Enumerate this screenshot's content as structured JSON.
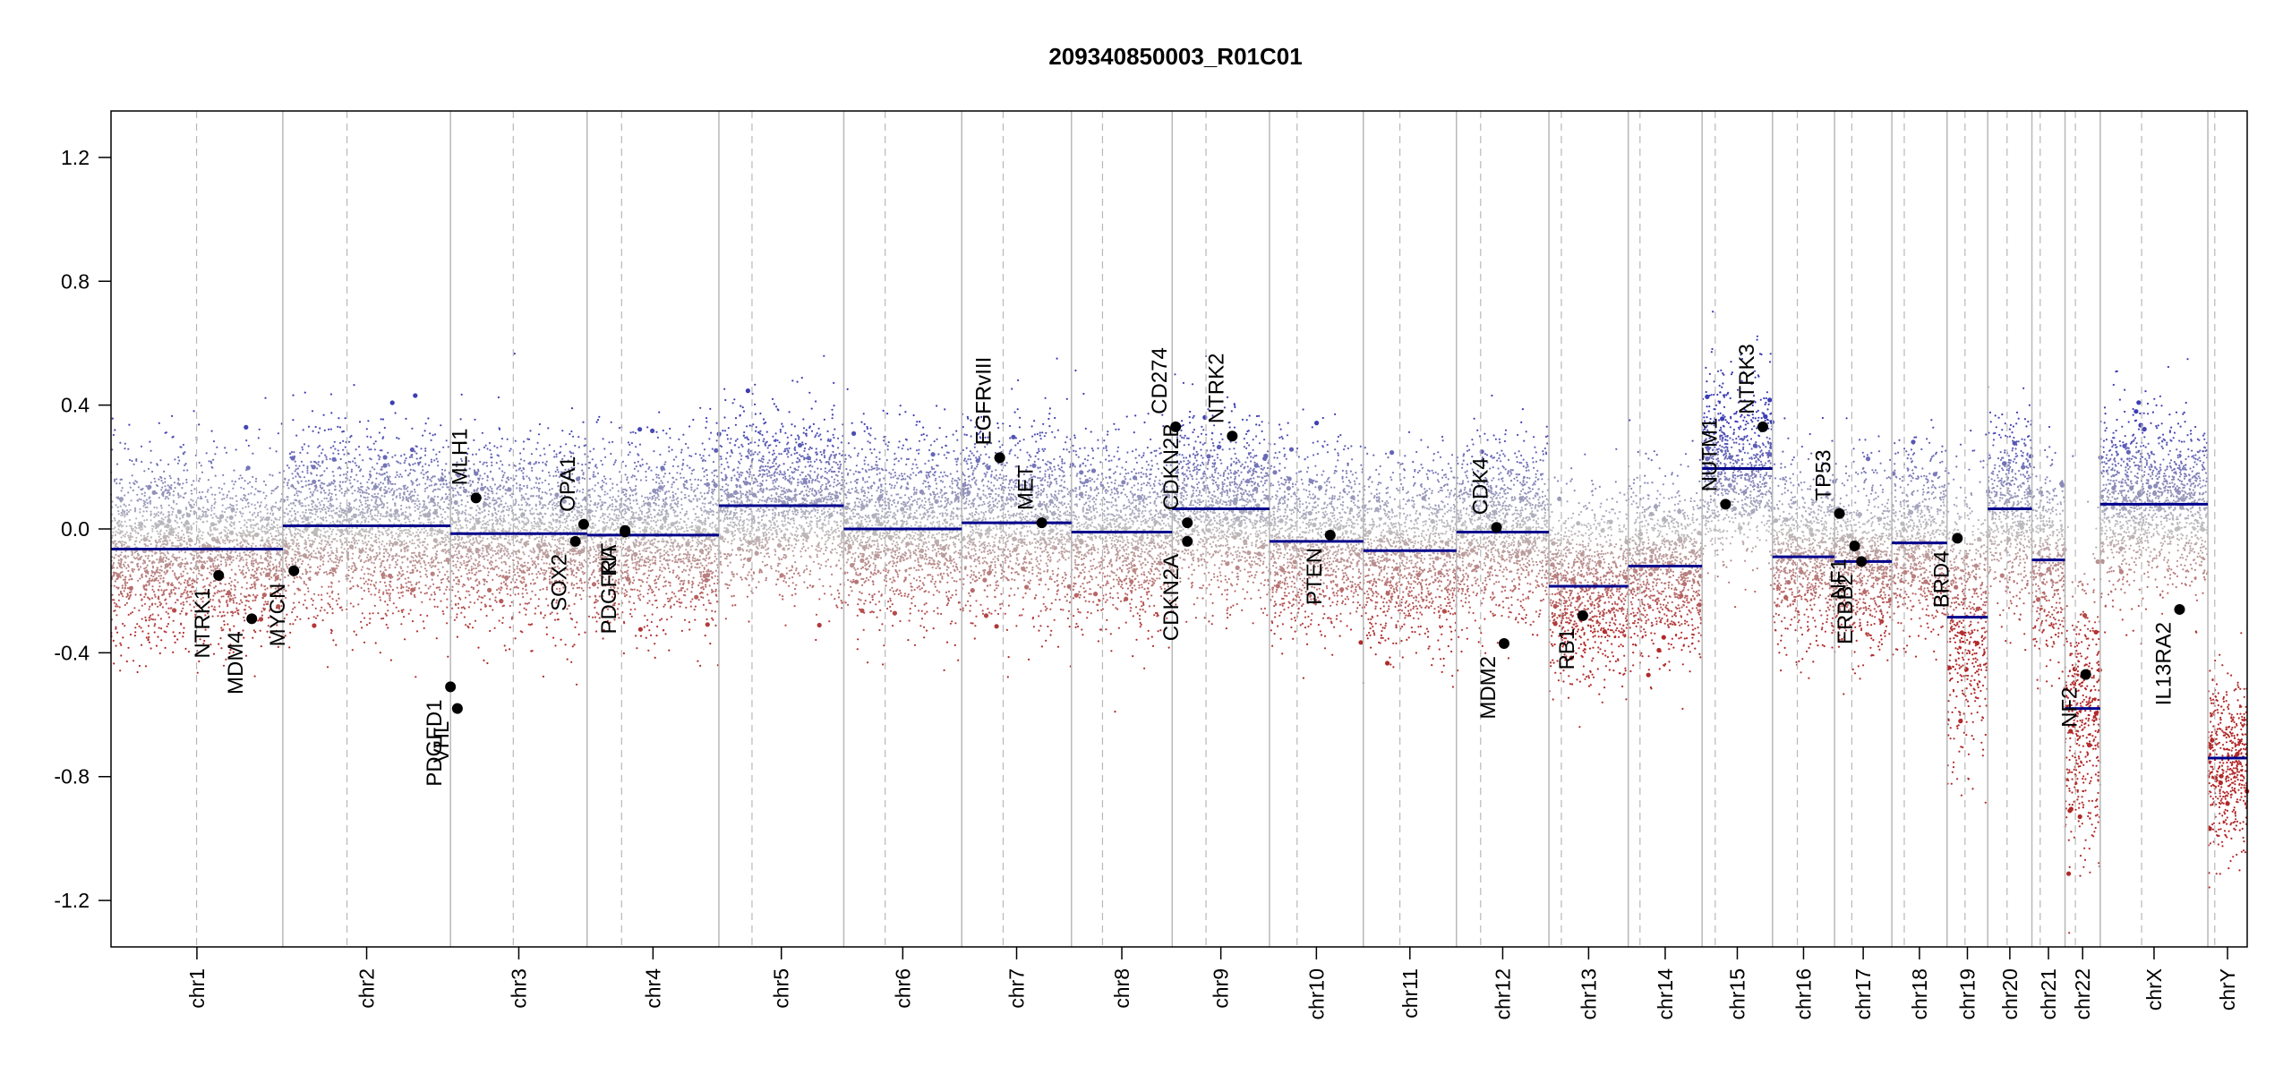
{
  "chart_data": {
    "type": "scatter",
    "title": "209340850003_R01C01",
    "xlabel": "",
    "ylabel": "",
    "ylim": [
      -1.35,
      1.35
    ],
    "y_ticks": [
      -1.2,
      -0.8,
      -0.4,
      0.0,
      0.4,
      0.8,
      1.2
    ],
    "y_tick_labels": [
      "-1.2",
      "-0.8",
      "-0.4",
      "0.0",
      "0.4",
      "0.8",
      "1.2"
    ],
    "grid": false,
    "colors": {
      "segment": "#00008b",
      "gain": "#3b3bb0",
      "loss": "#b22222",
      "neutral": "#b0b0b0",
      "point": "#000000"
    },
    "chromosomes": [
      {
        "name": "chr1",
        "length": 249,
        "centromere": 124,
        "segment": -0.065
      },
      {
        "name": "chr2",
        "length": 243,
        "centromere": 93,
        "segment": 0.01
      },
      {
        "name": "chr3",
        "length": 198,
        "centromere": 91,
        "segment": -0.015
      },
      {
        "name": "chr4",
        "length": 191,
        "centromere": 50,
        "segment": -0.02
      },
      {
        "name": "chr5",
        "length": 181,
        "centromere": 48,
        "segment": 0.075
      },
      {
        "name": "chr6",
        "length": 171,
        "centromere": 60,
        "segment": 0.0
      },
      {
        "name": "chr7",
        "length": 159,
        "centromere": 60,
        "segment": 0.02
      },
      {
        "name": "chr8",
        "length": 146,
        "centromere": 45,
        "segment": -0.01
      },
      {
        "name": "chr9",
        "length": 141,
        "centromere": 49,
        "segment": 0.065
      },
      {
        "name": "chr10",
        "length": 136,
        "centromere": 40,
        "segment": -0.04
      },
      {
        "name": "chr11",
        "length": 135,
        "centromere": 53,
        "segment": -0.07
      },
      {
        "name": "chr12",
        "length": 134,
        "centromere": 35,
        "segment": -0.01
      },
      {
        "name": "chr13",
        "length": 115,
        "centromere": 18,
        "segment": -0.185
      },
      {
        "name": "chr14",
        "length": 107,
        "centromere": 17,
        "segment": -0.12
      },
      {
        "name": "chr15",
        "length": 102,
        "centromere": 19,
        "segment": 0.195
      },
      {
        "name": "chr16",
        "length": 90,
        "centromere": 36,
        "segment": -0.09
      },
      {
        "name": "chr17",
        "length": 83,
        "centromere": 25,
        "segment": -0.105
      },
      {
        "name": "chr18",
        "length": 80,
        "centromere": 18,
        "segment": -0.045
      },
      {
        "name": "chr19",
        "length": 59,
        "centromere": 26,
        "segment": -0.285
      },
      {
        "name": "chr20",
        "length": 64,
        "centromere": 28,
        "segment": 0.065
      },
      {
        "name": "chr21",
        "length": 48,
        "centromere": 12,
        "segment": -0.1
      },
      {
        "name": "chr22",
        "length": 51,
        "centromere": 15,
        "segment": -0.58
      },
      {
        "name": "chrX",
        "length": 156,
        "centromere": 60,
        "segment": 0.08
      },
      {
        "name": "chrY",
        "length": 57,
        "centromere": 10,
        "segment": -0.74
      }
    ],
    "genes": [
      {
        "name": "NTRK1",
        "chr": "chr1",
        "pos": 156,
        "value": -0.15
      },
      {
        "name": "MDM4",
        "chr": "chr1",
        "pos": 204,
        "value": -0.29
      },
      {
        "name": "MYCN",
        "chr": "chr2",
        "pos": 16,
        "value": -0.135
      },
      {
        "name": "PDGFD1",
        "chr": "chr3",
        "pos": 0,
        "value": -0.51
      },
      {
        "name": "VHL",
        "chr": "chr3",
        "pos": 10,
        "value": -0.58
      },
      {
        "name": "MLH1",
        "chr": "chr3",
        "pos": 37,
        "value": 0.1
      },
      {
        "name": "SOX2",
        "chr": "chr3",
        "pos": 181,
        "value": -0.04
      },
      {
        "name": "OPA1",
        "chr": "chr3",
        "pos": 193,
        "value": 0.015
      },
      {
        "name": "KIT",
        "chr": "chr4",
        "pos": 55,
        "value": -0.005
      },
      {
        "name": "PDGFRA",
        "chr": "chr4",
        "pos": 55,
        "value": -0.01
      },
      {
        "name": "EGFR",
        "chr": "chr7",
        "pos": 55,
        "value": 0.23
      },
      {
        "name": "EGFRvIII",
        "chr": "chr7",
        "pos": 55,
        "value": 0.23
      },
      {
        "name": "MET",
        "chr": "chr7",
        "pos": 116,
        "value": 0.02
      },
      {
        "name": "CD274",
        "chr": "chr9",
        "pos": 5,
        "value": 0.33
      },
      {
        "name": "CDKN2A",
        "chr": "chr9",
        "pos": 22,
        "value": -0.04
      },
      {
        "name": "CDKN2B",
        "chr": "chr9",
        "pos": 22,
        "value": 0.02
      },
      {
        "name": "NTRK2",
        "chr": "chr9",
        "pos": 87,
        "value": 0.3
      },
      {
        "name": "PTEN",
        "chr": "chr10",
        "pos": 88,
        "value": -0.02
      },
      {
        "name": "CDK4",
        "chr": "chr12",
        "pos": 58,
        "value": 0.005
      },
      {
        "name": "MDM2",
        "chr": "chr12",
        "pos": 69,
        "value": -0.37
      },
      {
        "name": "RB1",
        "chr": "chr13",
        "pos": 49,
        "value": -0.28
      },
      {
        "name": "NUTM1",
        "chr": "chr15",
        "pos": 34,
        "value": 0.08
      },
      {
        "name": "NTRK3",
        "chr": "chr15",
        "pos": 88,
        "value": 0.33
      },
      {
        "name": "TP53",
        "chr": "chr17",
        "pos": 7,
        "value": 0.05
      },
      {
        "name": "NF1",
        "chr": "chr17",
        "pos": 29,
        "value": -0.055
      },
      {
        "name": "ERBB2",
        "chr": "chr17",
        "pos": 39,
        "value": -0.105
      },
      {
        "name": "BRD4",
        "chr": "chr19",
        "pos": 15,
        "value": -0.03
      },
      {
        "name": "NF2",
        "chr": "chr22",
        "pos": 30,
        "value": -0.47
      },
      {
        "name": "IL13RA2",
        "chr": "chrX",
        "pos": 115,
        "value": -0.26
      }
    ]
  }
}
